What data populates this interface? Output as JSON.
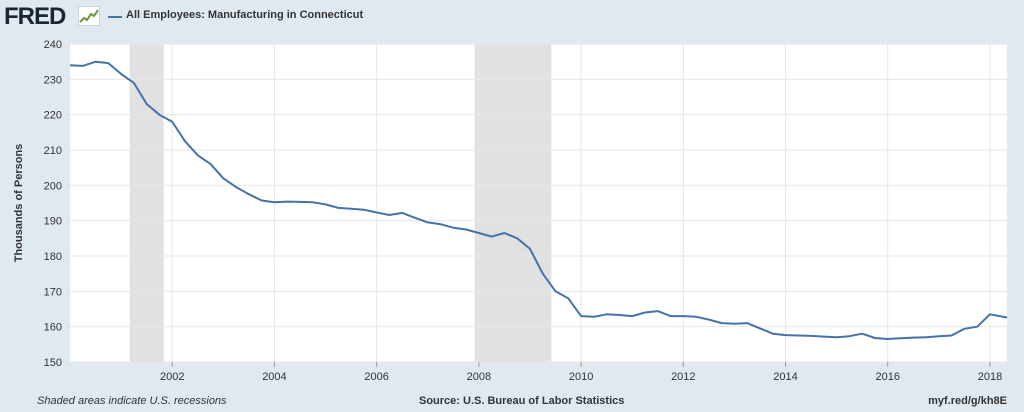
{
  "header": {
    "logo_text": "FRED",
    "logo_icon": "trend-line-icon",
    "series_label": "All Employees: Manufacturing in Connecticut",
    "series_color": "#4572a7"
  },
  "footer": {
    "note": "Shaded areas indicate U.S. recessions",
    "source": "Source: U.S. Bureau of Labor Statistics",
    "link": "myf.red/g/kh8E"
  },
  "chart_data": {
    "type": "line",
    "title": "",
    "xlabel": "",
    "ylabel": "Thousands of Persons",
    "xlim": [
      "2000-01",
      "2018-05"
    ],
    "ylim": [
      150,
      240
    ],
    "yticks": [
      "150",
      "160",
      "170",
      "180",
      "190",
      "200",
      "210",
      "220",
      "230",
      "240"
    ],
    "xticks": [
      "2002",
      "2004",
      "2006",
      "2008",
      "2010",
      "2012",
      "2014",
      "2016",
      "2018"
    ],
    "recessions": [
      [
        "2001-03",
        "2001-11"
      ],
      [
        "2007-12",
        "2009-06"
      ]
    ],
    "recession_color": "#e1e1e1",
    "grid": true,
    "series": [
      {
        "color": "#4572a7",
        "x": [
          "2000-01",
          "2000-04",
          "2000-07",
          "2000-10",
          "2001-01",
          "2001-04",
          "2001-07",
          "2001-10",
          "2002-01",
          "2002-04",
          "2002-07",
          "2002-10",
          "2003-01",
          "2003-04",
          "2003-07",
          "2003-10",
          "2004-01",
          "2004-04",
          "2004-07",
          "2004-10",
          "2005-01",
          "2005-04",
          "2005-07",
          "2005-10",
          "2006-01",
          "2006-04",
          "2006-07",
          "2006-10",
          "2007-01",
          "2007-04",
          "2007-07",
          "2007-10",
          "2008-01",
          "2008-04",
          "2008-07",
          "2008-10",
          "2009-01",
          "2009-04",
          "2009-07",
          "2009-10",
          "2010-01",
          "2010-04",
          "2010-07",
          "2010-10",
          "2011-01",
          "2011-04",
          "2011-07",
          "2011-10",
          "2012-01",
          "2012-04",
          "2012-07",
          "2012-10",
          "2013-01",
          "2013-04",
          "2013-07",
          "2013-10",
          "2014-01",
          "2014-04",
          "2014-07",
          "2014-10",
          "2015-01",
          "2015-04",
          "2015-07",
          "2015-10",
          "2016-01",
          "2016-04",
          "2016-07",
          "2016-10",
          "2017-01",
          "2017-04",
          "2017-07",
          "2017-10",
          "2018-01",
          "2018-05"
        ],
        "y": [
          234,
          233.8,
          235,
          234.6,
          231.5,
          229,
          223,
          220,
          218,
          212.5,
          208.5,
          206,
          202,
          199.5,
          197.5,
          195.7,
          195.2,
          195.4,
          195.3,
          195.2,
          194.6,
          193.6,
          193.4,
          193.1,
          192.3,
          191.6,
          192.2,
          190.8,
          189.5,
          189,
          188,
          187.5,
          186.5,
          185.5,
          186.5,
          185,
          182,
          175,
          170,
          168,
          163,
          162.8,
          163.5,
          163.3,
          163,
          164,
          164.4,
          163,
          163,
          162.8,
          162,
          161,
          160.8,
          161,
          159.5,
          158,
          157.6,
          157.5,
          157.4,
          157.2,
          157,
          157.3,
          158,
          156.8,
          156.5,
          156.7,
          156.9,
          157,
          157.3,
          157.5,
          159.4,
          160,
          163.5,
          162.6
        ]
      }
    ]
  }
}
